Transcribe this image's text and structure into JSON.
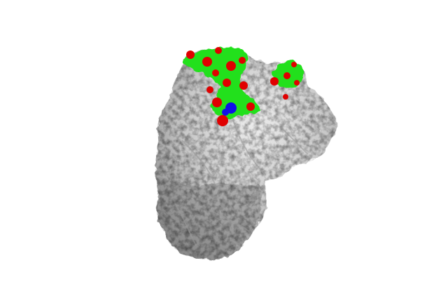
{
  "scene": {
    "background": "#ffffff",
    "surface_colors": {
      "base": "#c8c8c8",
      "light": "#e6e6e6",
      "shade": "#8f8f8f",
      "patch_green": "#22e01c",
      "patch_red": "#e00000",
      "patch_blue": "#1010e8"
    }
  }
}
